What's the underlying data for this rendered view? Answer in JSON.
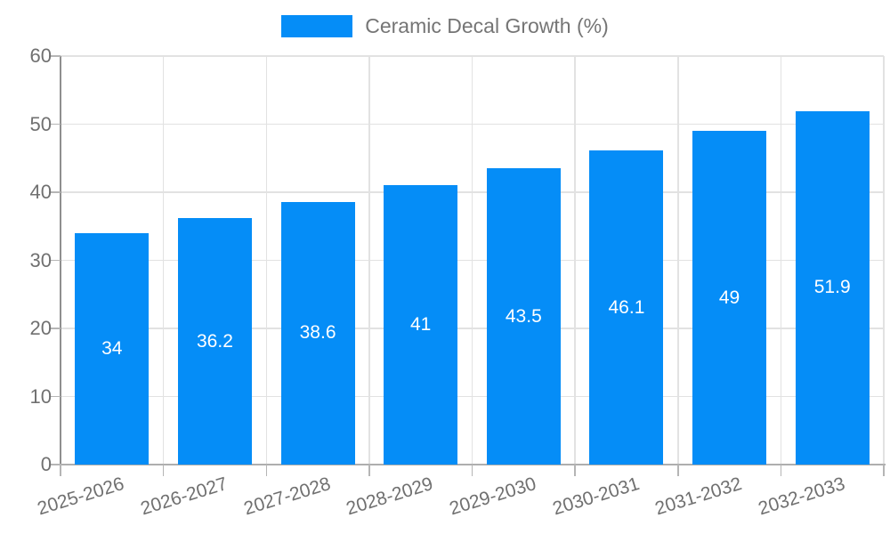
{
  "chart_data": {
    "type": "bar",
    "legend": "Ceramic Decal Growth (%)",
    "categories": [
      "2025-2026",
      "2026-2027",
      "2027-2028",
      "2028-2029",
      "2029-2030",
      "2030-2031",
      "2031-2032",
      "2032-2033"
    ],
    "values": [
      34,
      36.2,
      38.6,
      41,
      43.5,
      46.1,
      49,
      51.9
    ],
    "value_labels": [
      "34",
      "36.2",
      "38.6",
      "41",
      "43.5",
      "46.1",
      "49",
      "51.9"
    ],
    "ylim": [
      0,
      60
    ],
    "ytick_step": 10,
    "ytick_labels": [
      "0",
      "10",
      "20",
      "30",
      "40",
      "50",
      "60"
    ],
    "grid": true,
    "legend_position": "top-center",
    "xlabel": "",
    "ylabel": "",
    "colors": {
      "bar": "#058df7",
      "value_label": "#ffffff",
      "grid": "#e2e2e2",
      "y_axis_line": "#8f8f8f",
      "baseline": "#aeaeae",
      "tick_mark": "#b5b5b5",
      "tick_text": "#707070",
      "legend_text": "#757575"
    }
  }
}
